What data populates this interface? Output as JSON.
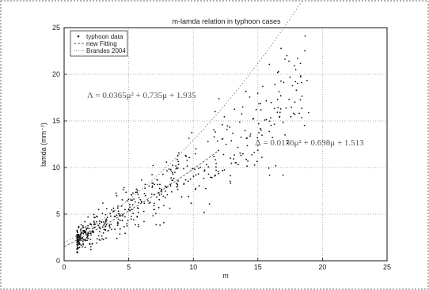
{
  "chart_data": {
    "type": "scatter",
    "title": "m-lamda relation in typhoon cases",
    "xlabel": "m",
    "ylabel": "lamda (mm⁻¹)",
    "xlim": [
      0,
      25
    ],
    "ylim": [
      0,
      25
    ],
    "xticks": [
      "0",
      "5",
      "10",
      "15",
      "20",
      "25"
    ],
    "yticks": [
      "0",
      "5",
      "10",
      "15",
      "20",
      "25"
    ],
    "grid": true,
    "legend_position": "top-left",
    "legend": [
      {
        "name": "typhoon data",
        "style": "dots"
      },
      {
        "name": "new Fitting",
        "style": "dashed"
      },
      {
        "name": "Brandes 2004",
        "style": "dotted"
      }
    ],
    "annotations": [
      {
        "text": "Λ = 0.0365μ² + 0.735μ + 1.935",
        "x": 1.8,
        "y": 16.3
      },
      {
        "text": "Λ = 0.0136μ² + 0.698μ + 1.513",
        "x": 14.8,
        "y": 11.5
      }
    ],
    "series": [
      {
        "name": "new Fitting",
        "fit": {
          "a": 0.0136,
          "b": 0.698,
          "c": 1.513
        },
        "x_range": [
          0,
          12
        ]
      },
      {
        "name": "Brandes 2004",
        "fit": {
          "a": 0.0365,
          "b": 0.735,
          "c": 1.935
        },
        "x_range": [
          0,
          23
        ]
      },
      {
        "name": "typhoon data",
        "count": 560,
        "x_range": [
          1,
          19
        ],
        "center_fit": {
          "a": 0.0136,
          "b": 0.698,
          "c": 1.513
        }
      }
    ]
  }
}
